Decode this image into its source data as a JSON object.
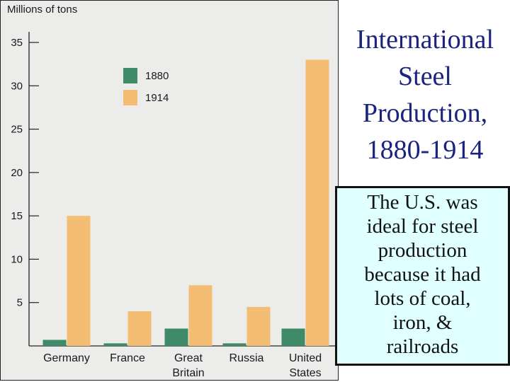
{
  "title_lines": [
    "International",
    "Steel",
    "Production,",
    "1880-1914"
  ],
  "note_lines": [
    "The U.S. was",
    "ideal for steel",
    "production",
    "because it had",
    "lots of coal,",
    "iron, &",
    "railroads"
  ],
  "colors": {
    "series_1880": "#3f8a68",
    "series_1914": "#f3be73",
    "title": "#1a237e",
    "note_bg": "#e0ffff"
  },
  "chart_data": {
    "type": "bar",
    "units_label": "Millions of tons",
    "categories": [
      [
        "Germany"
      ],
      [
        "France"
      ],
      [
        "Great",
        "Britain"
      ],
      [
        "Russia"
      ],
      [
        "United",
        "States"
      ]
    ],
    "series": [
      {
        "name": "1880",
        "values": [
          0.7,
          0.3,
          2.0,
          0.3,
          2.0
        ]
      },
      {
        "name": "1914",
        "values": [
          15.0,
          4.0,
          7.0,
          4.5,
          33.0
        ]
      }
    ],
    "yticks": [
      5,
      10,
      15,
      20,
      25,
      30,
      35
    ],
    "ylim": [
      0,
      36
    ],
    "legend_position": "top-left",
    "grid": false
  }
}
